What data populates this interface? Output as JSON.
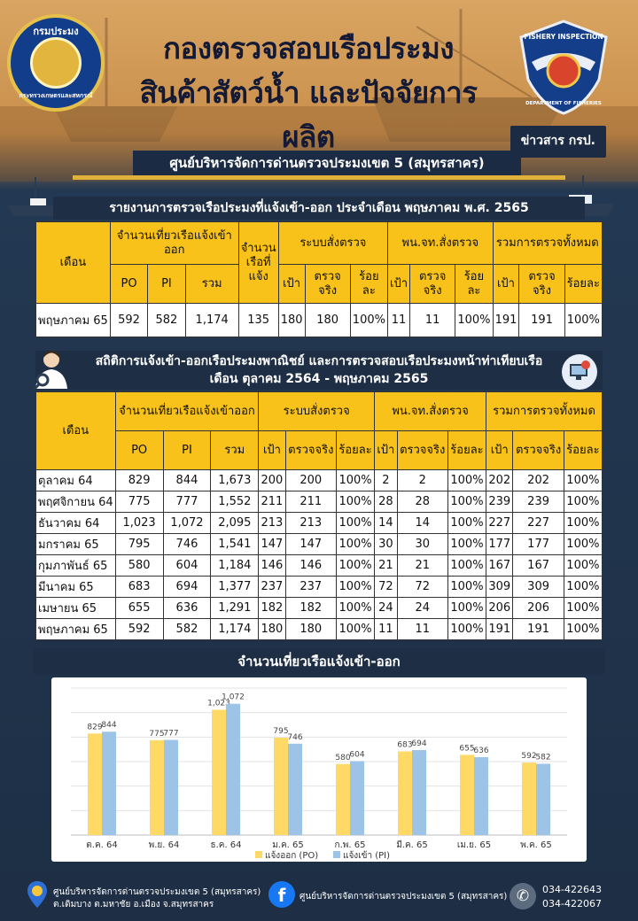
{
  "header": {
    "title_line1": "กองตรวจสอบเรือประมง",
    "title_line2": "สินค้าสัตว์น้ำ และปัจจัยการผลิต",
    "news_tag": "ข่าวสาร กรป.",
    "subtitle": "ศูนย์บริหารจัดการด่านตรวจประมงเขต 5 (สมุทรสาคร)",
    "logo_left_top": "กรมประมง",
    "logo_left_bottom": "กระทรวงเกษตรและสหกรณ์",
    "logo_right_top": "FISHERY INSPECTION",
    "logo_right_bottom": "DEPARTMENT OF FISHERIES"
  },
  "report1": {
    "title": "รายงานการตรวจเรือประมงที่แจ้งเข้า-ออก ประจำเดือน พฤษภาคม พ.ศ. 2565",
    "headers": {
      "month": "เดือน",
      "trips": "จำนวนเที่ยวเรือแจ้งเข้าออก",
      "boats": "จำนวนเรือที่แจ้ง",
      "system": "ระบบสั่งตรวจ",
      "officer": "พน.จท.สั่งตรวจ",
      "total": "รวมการตรวจทั้งหมด",
      "po": "PO",
      "pi": "PI",
      "sum": "รวม",
      "target": "เป้า",
      "actual": "ตรวจจริง",
      "percent": "ร้อยละ"
    },
    "row": {
      "month": "พฤษภาคม 65",
      "po": "592",
      "pi": "582",
      "sum": "1,174",
      "boats": "135",
      "s_target": "180",
      "s_actual": "180",
      "s_pct": "100%",
      "o_target": "11",
      "o_actual": "11",
      "o_pct": "100%",
      "t_target": "191",
      "t_actual": "191",
      "t_pct": "100%"
    }
  },
  "report2": {
    "title_line1": "สถิติการแจ้งเข้า-ออกเรือประมงพาณิชย์ และการตรวจสอบเรือประมงหน้าท่าเทียบเรือ",
    "title_line2": "เดือน ตุลาคม 2564 - พฤษภาคม 2565",
    "headers": {
      "month": "เดือน",
      "trips": "จำนวนเที่ยวเรือแจ้งเข้าออก",
      "system": "ระบบสั่งตรวจ",
      "officer": "พน.จท.สั่งตรวจ",
      "total": "รวมการตรวจทั้งหมด",
      "po": "PO",
      "pi": "PI",
      "sum": "รวม",
      "target": "เป้า",
      "actual": "ตรวจจริง",
      "percent": "ร้อยละ"
    },
    "rows": [
      [
        "ตุลาคม 64",
        "829",
        "844",
        "1,673",
        "200",
        "200",
        "100%",
        "2",
        "2",
        "100%",
        "202",
        "202",
        "100%"
      ],
      [
        "พฤศจิกายน 64",
        "775",
        "777",
        "1,552",
        "211",
        "211",
        "100%",
        "28",
        "28",
        "100%",
        "239",
        "239",
        "100%"
      ],
      [
        "ธันวาคม 64",
        "1,023",
        "1,072",
        "2,095",
        "213",
        "213",
        "100%",
        "14",
        "14",
        "100%",
        "227",
        "227",
        "100%"
      ],
      [
        "มกราคม 65",
        "795",
        "746",
        "1,541",
        "147",
        "147",
        "100%",
        "30",
        "30",
        "100%",
        "177",
        "177",
        "100%"
      ],
      [
        "กุมภาพันธ์ 65",
        "580",
        "604",
        "1,184",
        "146",
        "146",
        "100%",
        "21",
        "21",
        "100%",
        "167",
        "167",
        "100%"
      ],
      [
        "มีนาคม 65",
        "683",
        "694",
        "1,377",
        "237",
        "237",
        "100%",
        "72",
        "72",
        "100%",
        "309",
        "309",
        "100%"
      ],
      [
        "เมษายน 65",
        "655",
        "636",
        "1,291",
        "182",
        "182",
        "100%",
        "24",
        "24",
        "100%",
        "206",
        "206",
        "100%"
      ],
      [
        "พฤษภาคม 65",
        "592",
        "582",
        "1,174",
        "180",
        "180",
        "100%",
        "11",
        "11",
        "100%",
        "191",
        "191",
        "100%"
      ]
    ]
  },
  "chart_data": {
    "type": "bar",
    "title": "จำนวนเที่ยวเรือแจ้งเข้า-ออก",
    "categories": [
      "ต.ค. 64",
      "พ.ย. 64",
      "ธ.ค. 64",
      "ม.ค. 65",
      "ก.พ. 65",
      "มี.ค. 65",
      "เม.ย. 65",
      "พ.ค. 65"
    ],
    "series": [
      {
        "name": "แจ้งออก (PO)",
        "color": "#ffd966",
        "values": [
          829,
          775,
          1023,
          795,
          580,
          683,
          655,
          592
        ],
        "labels": [
          "829",
          "775",
          "1,023",
          "795",
          "580",
          "683",
          "655",
          "592"
        ]
      },
      {
        "name": "แจ้งเข้า (PI)",
        "color": "#9dc3e6",
        "values": [
          844,
          777,
          1072,
          746,
          604,
          694,
          636,
          582
        ],
        "labels": [
          "844",
          "777",
          "1,072",
          "746",
          "604",
          "694",
          "636",
          "582"
        ]
      }
    ],
    "ylim": [
      0,
      1200
    ],
    "grid": true,
    "legend_position": "bottom"
  },
  "footer": {
    "address_line1": "ศูนย์บริหารจัดการด่านตรวจประมงเขต 5 (สมุทรสาคร)",
    "address_line2": "ต.เดิมบาง ต.มหาชัย อ.เมือง จ.สมุทรสาคร",
    "facebook": "ศูนย์บริหารจัดการด่านตรวจประมงเขต 5 (สมุทรสาคร)",
    "phone1": "034-422643",
    "phone2": "034-422067"
  }
}
